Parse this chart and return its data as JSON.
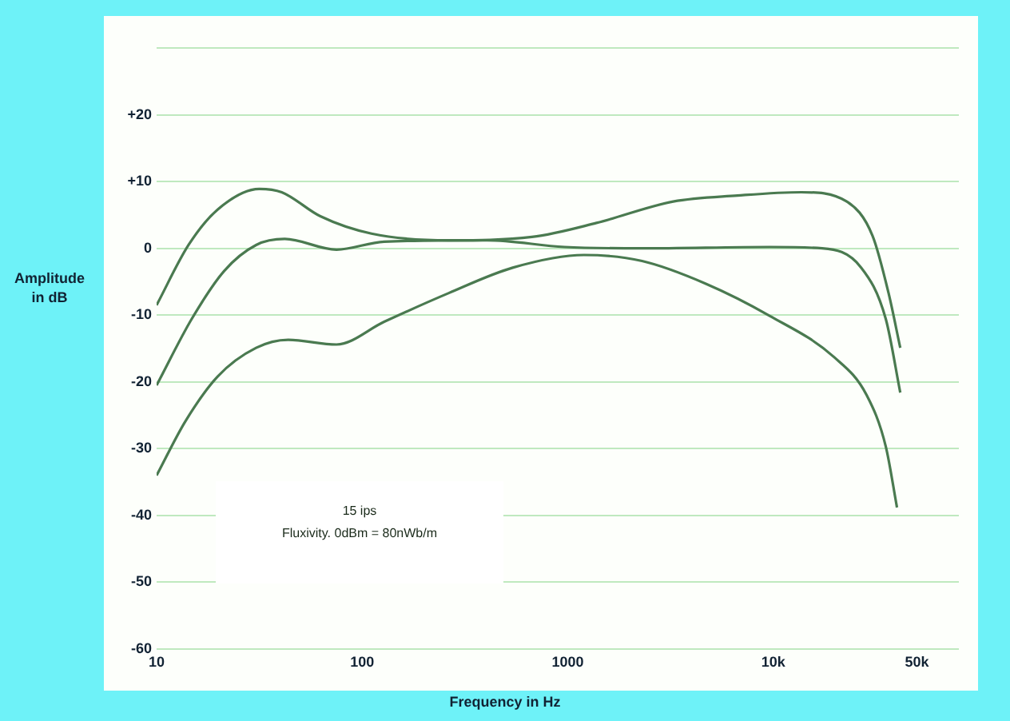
{
  "chart_data": {
    "type": "line",
    "xlabel": "Frequency in Hz",
    "ylabel": "Amplitude in dB",
    "log": "x",
    "grid": "y",
    "xlim": [
      10,
      80000
    ],
    "ylim": [
      -60,
      30
    ],
    "xticks": [
      10,
      100,
      1000,
      {
        "value": 10000,
        "label": "10k"
      },
      {
        "value": 50000,
        "label": "50k"
      }
    ],
    "yticks": [
      -60,
      -50,
      -40,
      -30,
      -20,
      -10,
      0,
      {
        "value": 10,
        "label": "+10"
      },
      {
        "value": 20,
        "label": "+20"
      },
      {
        "value": 30,
        "label": null
      }
    ],
    "annotations": [
      "15 ips",
      "Fluxivity. 0dBm = 80nWb/m"
    ],
    "series": [
      {
        "color": "#4a7a50",
        "x": [
          10,
          14.3,
          19.8,
          31.6,
          40.6,
          62.6,
          111,
          264,
          670,
          1380,
          3260,
          6700,
          13700,
          22800,
          30400,
          36400,
          41500
        ],
        "values": [
          -8.5,
          0.5,
          5.8,
          8.9,
          8.4,
          4.8,
          2.2,
          1.2,
          1.7,
          3.8,
          7,
          7.9,
          8.4,
          7,
          1.9,
          -6.7,
          -14.9
        ]
      },
      {
        "color": "#4a7a50",
        "x": [
          10,
          14.8,
          21.3,
          30.5,
          42,
          75,
          128,
          405,
          965,
          2300,
          9600,
          17300,
          26800,
          35300,
          41500
        ],
        "values": [
          -20.5,
          -10.6,
          -3.4,
          0.5,
          1.4,
          -0.2,
          1,
          1.2,
          0.2,
          0,
          0.2,
          0,
          -2.9,
          -10.6,
          -21.6
        ]
      },
      {
        "color": "#4a7a50",
        "x": [
          10,
          13.8,
          19.8,
          30.5,
          43.7,
          75,
          128,
          264,
          540,
          1200,
          2300,
          4700,
          9600,
          19800,
          28500,
          35300,
          40000
        ],
        "values": [
          -34,
          -25.9,
          -19.2,
          -14.9,
          -13.7,
          -14.4,
          -11,
          -6.7,
          -2.9,
          -1,
          -1.9,
          -5.3,
          -10.1,
          -16.3,
          -22,
          -29.7,
          -38.8
        ]
      }
    ]
  }
}
